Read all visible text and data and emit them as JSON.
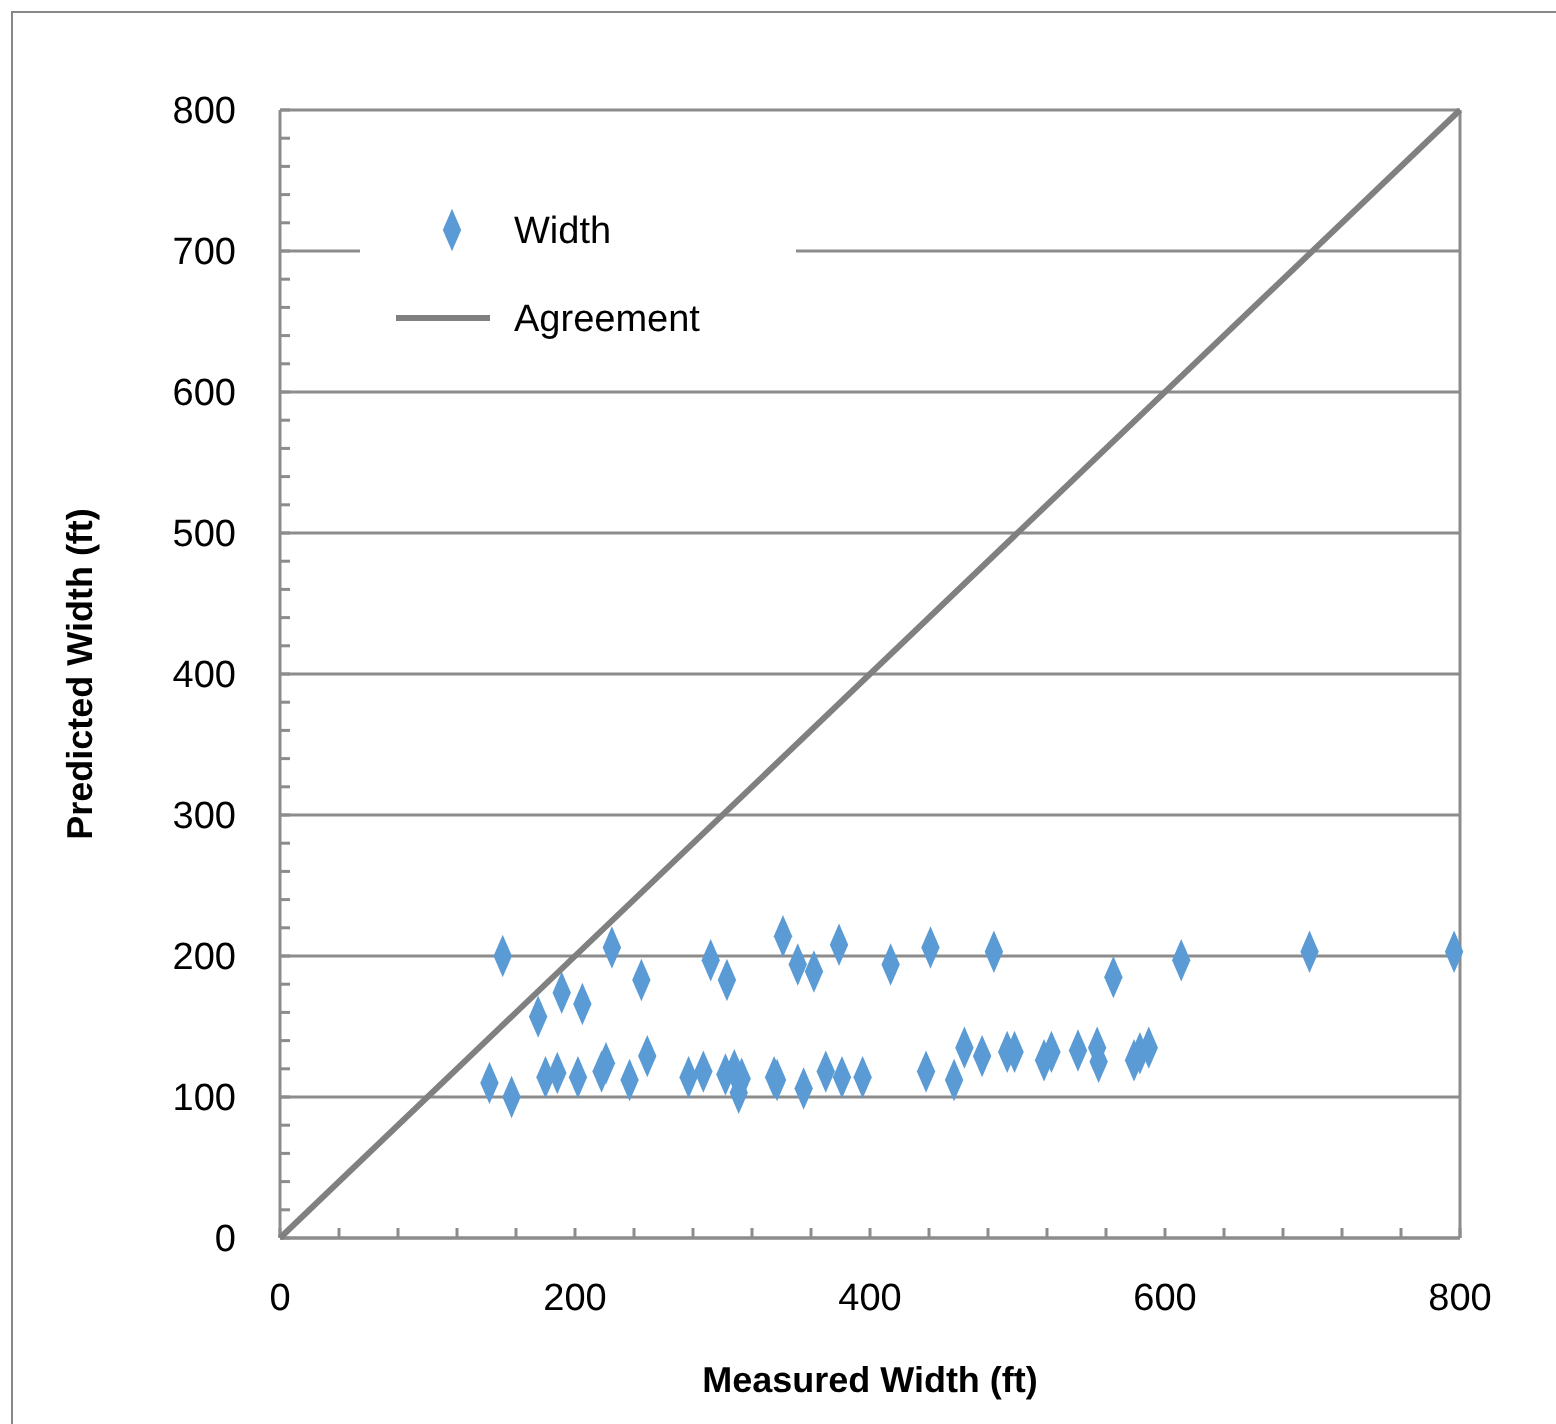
{
  "chart_data": {
    "type": "scatter",
    "xlabel": "Measured Width (ft)",
    "ylabel": "Predicted Width (ft)",
    "xlim": [
      0,
      800
    ],
    "ylim": [
      0,
      800
    ],
    "xticks": [
      0,
      {
        "value": 40,
        "label": null
      },
      {
        "value": 80,
        "label": null
      },
      {
        "value": 120,
        "label": null
      },
      {
        "value": 160,
        "label": null
      },
      200,
      {
        "value": 240,
        "label": null
      },
      {
        "value": 280,
        "label": null
      },
      {
        "value": 320,
        "label": null
      },
      {
        "value": 360,
        "label": null
      },
      400,
      {
        "value": 440,
        "label": null
      },
      {
        "value": 480,
        "label": null
      },
      {
        "value": 520,
        "label": null
      },
      {
        "value": 560,
        "label": null
      },
      600,
      {
        "value": 640,
        "label": null
      },
      {
        "value": 680,
        "label": null
      },
      {
        "value": 720,
        "label": null
      },
      {
        "value": 760,
        "label": null
      },
      800
    ],
    "yticks": [
      0,
      {
        "value": 20,
        "label": null
      },
      {
        "value": 40,
        "label": null
      },
      {
        "value": 60,
        "label": null
      },
      {
        "value": 80,
        "label": null
      },
      100,
      {
        "value": 120,
        "label": null
      },
      {
        "value": 140,
        "label": null
      },
      {
        "value": 160,
        "label": null
      },
      {
        "value": 180,
        "label": null
      },
      200,
      {
        "value": 220,
        "label": null
      },
      {
        "value": 240,
        "label": null
      },
      {
        "value": 260,
        "label": null
      },
      {
        "value": 280,
        "label": null
      },
      300,
      {
        "value": 320,
        "label": null
      },
      {
        "value": 340,
        "label": null
      },
      {
        "value": 360,
        "label": null
      },
      {
        "value": 380,
        "label": null
      },
      400,
      {
        "value": 420,
        "label": null
      },
      {
        "value": 440,
        "label": null
      },
      {
        "value": 460,
        "label": null
      },
      {
        "value": 480,
        "label": null
      },
      500,
      {
        "value": 520,
        "label": null
      },
      {
        "value": 540,
        "label": null
      },
      {
        "value": 560,
        "label": null
      },
      {
        "value": 580,
        "label": null
      },
      600,
      {
        "value": 620,
        "label": null
      },
      {
        "value": 640,
        "label": null
      },
      {
        "value": 660,
        "label": null
      },
      {
        "value": 680,
        "label": null
      },
      700,
      {
        "value": 720,
        "label": null
      },
      {
        "value": 740,
        "label": null
      },
      {
        "value": 760,
        "label": null
      },
      {
        "value": 780,
        "label": null
      },
      800
    ],
    "grid": "y",
    "legend": "top left",
    "series": [
      {
        "name": "Width",
        "marker": "diamond",
        "color": "#5b9bd5",
        "x": [
          151,
          142,
          157,
          175,
          191,
          205,
          180,
          188,
          202,
          218,
          221,
          225,
          237,
          245,
          249,
          277,
          287,
          292,
          303,
          302,
          308,
          311,
          313,
          335,
          337,
          341,
          351,
          362,
          355,
          370,
          381,
          379,
          395,
          414,
          441,
          484,
          438,
          457,
          464,
          476,
          493,
          498,
          518,
          523,
          541,
          554,
          555,
          565,
          579,
          583,
          589,
          611,
          698,
          796
        ],
        "values": [
          200,
          110,
          100,
          157,
          174,
          166,
          114,
          117,
          114,
          118,
          124,
          206,
          112,
          183,
          129,
          114,
          118,
          197,
          183,
          116,
          119,
          103,
          113,
          114,
          112,
          214,
          194,
          189,
          106,
          118,
          114,
          208,
          114,
          194,
          206,
          203,
          118,
          112,
          135,
          129,
          132,
          132,
          126,
          132,
          133,
          135,
          125,
          185,
          126,
          131,
          135,
          197,
          203,
          203
        ]
      },
      {
        "name": "Agreement",
        "type": "line",
        "line_style": "solid",
        "color": "#808080",
        "x": [
          0,
          800
        ],
        "values": [
          0,
          800
        ]
      }
    ]
  }
}
